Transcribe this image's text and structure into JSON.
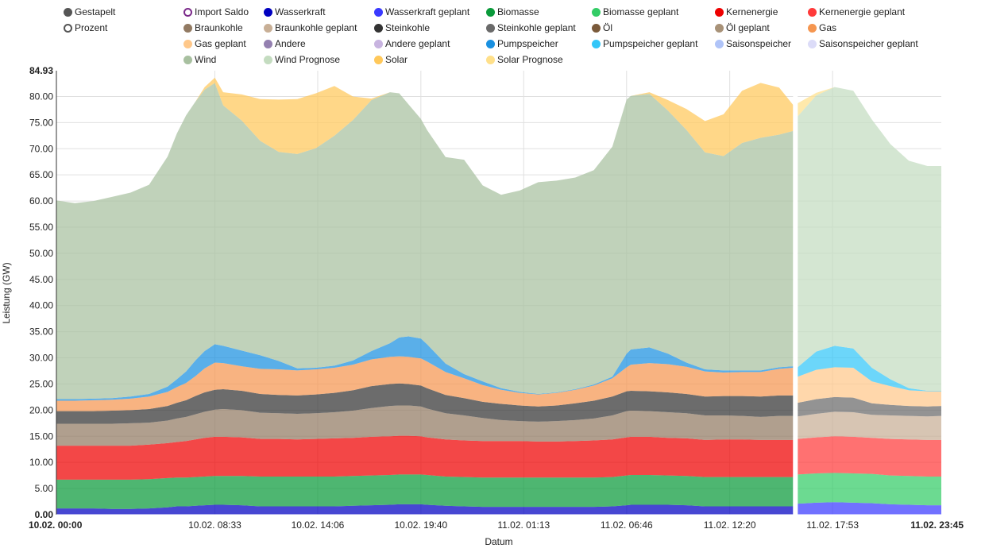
{
  "legend": {
    "mode": [
      {
        "id": "gestapelt",
        "label": "Gestapelt",
        "color": "#555555",
        "filled": true
      },
      {
        "id": "prozent",
        "label": "Prozent",
        "color": "#555555",
        "filled": false
      }
    ],
    "series": [
      {
        "id": "import_saldo",
        "label": "Import Saldo",
        "color": "#7b2a8a",
        "filled": false
      },
      {
        "id": "wasserkraft",
        "label": "Wasserkraft",
        "color": "#0000c0",
        "filled": true
      },
      {
        "id": "wasserkraft_geplant",
        "label": "Wasserkraft geplant",
        "color": "#3a3aff",
        "filled": true
      },
      {
        "id": "biomasse",
        "label": "Biomasse",
        "color": "#0a9a3a",
        "filled": true
      },
      {
        "id": "biomasse_geplant",
        "label": "Biomasse geplant",
        "color": "#33cc66",
        "filled": true
      },
      {
        "id": "kernenergie",
        "label": "Kernenergie",
        "color": "#ee0000",
        "filled": true
      },
      {
        "id": "kernenergie_geplant",
        "label": "Kernenergie geplant",
        "color": "#ff3a3a",
        "filled": true
      },
      {
        "id": "braunkohle",
        "label": "Braunkohle",
        "color": "#927a62",
        "filled": true
      },
      {
        "id": "braunkohle_geplant",
        "label": "Braunkohle geplant",
        "color": "#c8af96",
        "filled": true
      },
      {
        "id": "steinkohle",
        "label": "Steinkohle",
        "color": "#333333",
        "filled": true
      },
      {
        "id": "steinkohle_geplant",
        "label": "Steinkohle geplant",
        "color": "#6a6a6a",
        "filled": true
      },
      {
        "id": "oel",
        "label": "Öl",
        "color": "#7a5a3a",
        "filled": true
      },
      {
        "id": "oel_geplant",
        "label": "Öl geplant",
        "color": "#a89278",
        "filled": true
      },
      {
        "id": "gas",
        "label": "Gas",
        "color": "#f59650",
        "filled": true
      },
      {
        "id": "gas_geplant",
        "label": "Gas geplant",
        "color": "#ffc88a",
        "filled": true
      },
      {
        "id": "andere",
        "label": "Andere",
        "color": "#9480b0",
        "filled": true
      },
      {
        "id": "andere_geplant",
        "label": "Andere geplant",
        "color": "#c8b4e0",
        "filled": true
      },
      {
        "id": "pumpspeicher",
        "label": "Pumpspeicher",
        "color": "#1a90e0",
        "filled": true
      },
      {
        "id": "pumpspeicher_geplant",
        "label": "Pumpspeicher geplant",
        "color": "#33c6f8",
        "filled": true
      },
      {
        "id": "saisonspeicher",
        "label": "Saisonspeicher",
        "color": "#b0c4f8",
        "filled": true
      },
      {
        "id": "saisonspeicher_geplant",
        "label": "Saisonspeicher geplant",
        "color": "#dcdcf8",
        "filled": true
      },
      {
        "id": "wind",
        "label": "Wind",
        "color": "#a8c0a0",
        "filled": true
      },
      {
        "id": "wind_prognose",
        "label": "Wind Prognose",
        "color": "#c4dcc0",
        "filled": true
      },
      {
        "id": "solar",
        "label": "Solar",
        "color": "#ffc85a",
        "filled": true
      },
      {
        "id": "solar_prognose",
        "label": "Solar Prognose",
        "color": "#ffe08a",
        "filled": true
      }
    ]
  },
  "chart_data": {
    "type": "area",
    "stacked": true,
    "title": "",
    "xlabel": "Datum",
    "ylabel": "Leistung (GW)",
    "ylim": [
      0,
      84.93
    ],
    "y_ticks": [
      "0.00",
      "5.00",
      "10.00",
      "15.00",
      "20.00",
      "25.00",
      "30.00",
      "35.00",
      "40.00",
      "45.00",
      "50.00",
      "55.00",
      "60.00",
      "65.00",
      "70.00",
      "75.00",
      "80.00",
      "84.93"
    ],
    "x_range_hours": [
      0,
      47.75
    ],
    "x_ticks": [
      {
        "label": "10.02. 00:00",
        "hours": 0,
        "bold": true
      },
      {
        "label": "10.02. 08:33",
        "hours": 8.55,
        "bold": false
      },
      {
        "label": "10.02. 14:06",
        "hours": 14.1,
        "bold": false
      },
      {
        "label": "10.02. 19:40",
        "hours": 19.667,
        "bold": false
      },
      {
        "label": "11.02. 01:13",
        "hours": 25.217,
        "bold": false
      },
      {
        "label": "11.02. 06:46",
        "hours": 30.767,
        "bold": false
      },
      {
        "label": "11.02. 12:20",
        "hours": 36.333,
        "bold": false
      },
      {
        "label": "11.02. 17:53",
        "hours": 41.883,
        "bold": false
      },
      {
        "label": "11.02. 23:45",
        "hours": 47.75,
        "bold": true
      }
    ],
    "grid": true,
    "legend_position": "top",
    "actual": {
      "hours": [
        0,
        1,
        2,
        3,
        4,
        5,
        6,
        6.5,
        7,
        7.5,
        8,
        8.55,
        9,
        10,
        11,
        12,
        13,
        14,
        15,
        16,
        17,
        18,
        18.5,
        19,
        19.67,
        20,
        21,
        22,
        23,
        24,
        25,
        26,
        27,
        28,
        29,
        30,
        30.77,
        31,
        32,
        33,
        34,
        35,
        36,
        37,
        38,
        39,
        39.75
      ],
      "series": [
        {
          "name": "Wasserkraft",
          "values": [
            1.2,
            1.2,
            1.2,
            1.1,
            1.1,
            1.2,
            1.4,
            1.6,
            1.6,
            1.7,
            1.8,
            1.9,
            1.9,
            1.8,
            1.6,
            1.6,
            1.6,
            1.6,
            1.6,
            1.7,
            1.8,
            1.9,
            2.0,
            2.0,
            2.0,
            1.9,
            1.7,
            1.6,
            1.5,
            1.5,
            1.5,
            1.5,
            1.5,
            1.5,
            1.5,
            1.6,
            1.8,
            1.9,
            1.9,
            1.9,
            1.8,
            1.6,
            1.6,
            1.6,
            1.6,
            1.6,
            1.6
          ]
        },
        {
          "name": "Biomasse",
          "values": [
            5.5,
            5.5,
            5.5,
            5.6,
            5.6,
            5.6,
            5.6,
            5.5,
            5.5,
            5.5,
            5.5,
            5.5,
            5.5,
            5.6,
            5.7,
            5.7,
            5.7,
            5.7,
            5.7,
            5.7,
            5.7,
            5.7,
            5.7,
            5.7,
            5.7,
            5.7,
            5.6,
            5.6,
            5.6,
            5.6,
            5.6,
            5.6,
            5.6,
            5.6,
            5.6,
            5.6,
            5.7,
            5.7,
            5.7,
            5.6,
            5.6,
            5.6,
            5.6,
            5.6,
            5.6,
            5.6,
            5.6
          ]
        },
        {
          "name": "Kernenergie",
          "values": [
            6.5,
            6.5,
            6.5,
            6.5,
            6.5,
            6.6,
            6.7,
            6.8,
            7.0,
            7.2,
            7.4,
            7.5,
            7.5,
            7.4,
            7.2,
            7.2,
            7.1,
            7.2,
            7.3,
            7.3,
            7.4,
            7.4,
            7.4,
            7.4,
            7.3,
            7.2,
            7.1,
            7.0,
            7.0,
            7.0,
            7.0,
            6.9,
            6.9,
            7.0,
            7.1,
            7.2,
            7.3,
            7.3,
            7.3,
            7.2,
            7.2,
            7.1,
            7.2,
            7.2,
            7.1,
            7.1,
            7.1
          ]
        },
        {
          "name": "Braunkohle",
          "values": [
            4.2,
            4.2,
            4.2,
            4.2,
            4.3,
            4.2,
            4.3,
            4.5,
            4.6,
            4.8,
            5.0,
            5.2,
            5.3,
            5.2,
            5.0,
            4.9,
            4.9,
            4.9,
            5.0,
            5.2,
            5.5,
            5.8,
            5.8,
            5.8,
            5.7,
            5.5,
            5.0,
            4.8,
            4.4,
            4.0,
            3.8,
            3.8,
            3.9,
            4.0,
            4.2,
            4.6,
            5.0,
            5.0,
            4.9,
            4.9,
            4.8,
            4.7,
            4.6,
            4.5,
            4.4,
            4.6,
            4.6
          ]
        },
        {
          "name": "Steinkohle",
          "values": [
            2.4,
            2.4,
            2.4,
            2.5,
            2.5,
            2.6,
            2.8,
            3.0,
            3.2,
            3.5,
            3.7,
            3.8,
            3.8,
            3.7,
            3.6,
            3.5,
            3.5,
            3.6,
            3.7,
            3.9,
            4.2,
            4.2,
            4.2,
            4.1,
            4.0,
            3.9,
            3.5,
            3.3,
            3.1,
            3.1,
            3.0,
            2.9,
            3.0,
            3.2,
            3.4,
            3.6,
            3.8,
            3.8,
            3.8,
            3.8,
            3.7,
            3.6,
            3.7,
            3.8,
            3.9,
            3.9,
            3.9
          ]
        },
        {
          "name": "Gas",
          "values": [
            2.0,
            2.0,
            2.1,
            2.1,
            2.2,
            2.4,
            2.7,
            3.0,
            3.3,
            3.8,
            4.6,
            5.2,
            5.0,
            4.7,
            4.8,
            4.9,
            4.8,
            4.8,
            4.8,
            4.9,
            5.1,
            5.2,
            5.2,
            5.2,
            5.2,
            5.1,
            4.4,
            3.8,
            3.2,
            2.7,
            2.4,
            2.3,
            2.4,
            2.6,
            2.9,
            3.5,
            4.6,
            5.0,
            5.4,
            5.4,
            5.2,
            4.8,
            4.5,
            4.6,
            4.7,
            5.1,
            5.3
          ]
        },
        {
          "name": "Pumpspeicher",
          "values": [
            0.3,
            0.3,
            0.3,
            0.3,
            0.4,
            0.5,
            1.0,
            1.5,
            2.2,
            3.0,
            3.3,
            3.5,
            3.3,
            3.0,
            2.6,
            1.6,
            0.4,
            0.3,
            0.4,
            0.8,
            1.6,
            2.6,
            3.6,
            3.9,
            3.8,
            3.3,
            1.6,
            0.8,
            0.7,
            0.3,
            0.2,
            0.1,
            0.1,
            0.1,
            0.2,
            0.3,
            2.6,
            2.9,
            3.0,
            2.0,
            0.8,
            0.4,
            0.4,
            0.3,
            0.3,
            0.3,
            0.3
          ]
        },
        {
          "name": "Wind",
          "values": [
            38,
            37.5,
            37.8,
            38.5,
            39,
            40,
            44,
            47,
            49,
            49.5,
            50,
            50,
            46,
            44,
            41,
            40,
            41,
            42,
            44,
            46,
            48,
            48,
            46.7,
            44.4,
            42,
            41,
            39.5,
            41,
            37.5,
            37,
            38.5,
            40.5,
            40.5,
            40.5,
            41,
            44,
            48.6,
            48.5,
            48.5,
            46.5,
            44.5,
            41.5,
            41,
            43.5,
            44.5,
            44.5,
            45
          ]
        },
        {
          "name": "Solar",
          "values": [
            0,
            0,
            0,
            0,
            0,
            0,
            0,
            0,
            0,
            0,
            0.5,
            1.0,
            2.5,
            5,
            8,
            10,
            10.5,
            10.5,
            9.5,
            4.5,
            0.3,
            0,
            0,
            0,
            0,
            0,
            0,
            0,
            0,
            0,
            0,
            0,
            0,
            0,
            0,
            0,
            0,
            0,
            0.3,
            2.0,
            4.0,
            6.0,
            8.0,
            10.0,
            10.5,
            9.0,
            5.0
          ]
        }
      ]
    },
    "forecast": {
      "hours": [
        40,
        41,
        42,
        43,
        44,
        45,
        46,
        47,
        47.75
      ],
      "series": [
        {
          "name": "Wasserkraft geplant",
          "values": [
            2.1,
            2.3,
            2.4,
            2.3,
            2.2,
            2.0,
            1.9,
            1.8,
            1.8
          ]
        },
        {
          "name": "Biomasse geplant",
          "values": [
            5.6,
            5.6,
            5.6,
            5.6,
            5.6,
            5.5,
            5.5,
            5.5,
            5.5
          ]
        },
        {
          "name": "Kernenergie geplant",
          "values": [
            6.8,
            6.9,
            7.0,
            7.0,
            6.9,
            7.0,
            7.0,
            7.0,
            7.0
          ]
        },
        {
          "name": "Braunkohle geplant",
          "values": [
            4.3,
            4.5,
            4.7,
            4.7,
            4.4,
            4.5,
            4.5,
            4.5,
            4.6
          ]
        },
        {
          "name": "Steinkohle geplant",
          "values": [
            2.6,
            2.8,
            2.8,
            2.8,
            2.2,
            2.0,
            1.9,
            1.9,
            1.9
          ]
        },
        {
          "name": "Gas geplant",
          "values": [
            5.0,
            5.6,
            5.7,
            5.7,
            4.2,
            3.6,
            3.0,
            2.9,
            2.8
          ]
        },
        {
          "name": "Pumpspeicher geplant",
          "values": [
            1.8,
            3.5,
            4.1,
            3.7,
            2.6,
            1.3,
            0.4,
            0.1,
            0.1
          ]
        },
        {
          "name": "Wind Prognose",
          "values": [
            48,
            49,
            49.5,
            49.3,
            47.5,
            45,
            43.5,
            43.0,
            43.0
          ]
        },
        {
          "name": "Solar Prognose",
          "values": [
            2.5,
            0.5,
            0,
            0,
            0,
            0,
            0,
            0,
            0
          ]
        }
      ]
    }
  }
}
